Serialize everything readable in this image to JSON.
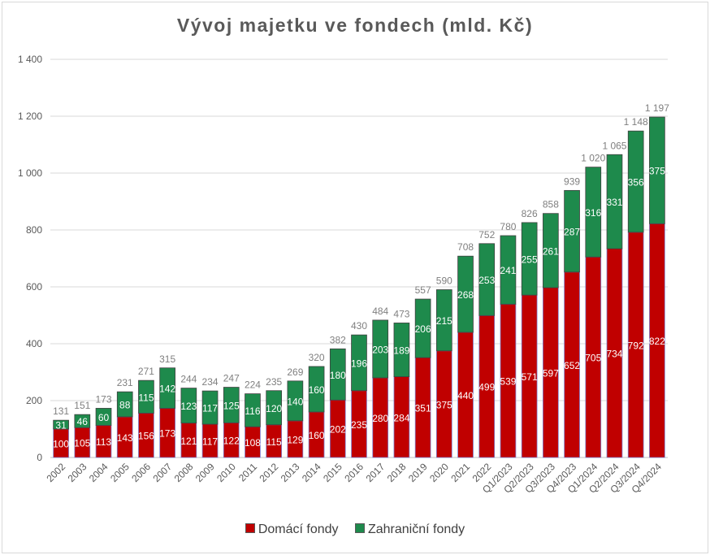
{
  "chart_data": {
    "type": "bar",
    "stacked": true,
    "title": "Vývoj majetku ve fondech (mld. Kč)",
    "categories": [
      "2002",
      "2003",
      "2004",
      "2005",
      "2006",
      "2007",
      "2008",
      "2009",
      "2010",
      "2011",
      "2012",
      "2013",
      "2014",
      "2015",
      "2016",
      "2017",
      "2018",
      "2019",
      "2020",
      "2021",
      "2022",
      "Q1/2023",
      "Q2/2023",
      "Q3/2023",
      "Q4/2023",
      "Q1/2024",
      "Q2/2024",
      "Q3/2024",
      "Q4/2024"
    ],
    "series": [
      {
        "name": "Domácí fondy",
        "color": "#c00000",
        "values": [
          100,
          105,
          113,
          143,
          156,
          173,
          121,
          117,
          122,
          108,
          115,
          129,
          160,
          202,
          235,
          280,
          284,
          351,
          375,
          440,
          499,
          539,
          571,
          597,
          652,
          705,
          734,
          792,
          822
        ]
      },
      {
        "name": "Zahraniční fondy",
        "color": "#1e8a4c",
        "values": [
          31,
          46,
          60,
          88,
          115,
          142,
          123,
          117,
          125,
          116,
          120,
          140,
          160,
          180,
          196,
          203,
          189,
          206,
          215,
          268,
          253,
          241,
          255,
          261,
          287,
          316,
          331,
          356,
          375
        ]
      }
    ],
    "totals": [
      "131",
      "151",
      "173",
      "231",
      "271",
      "315",
      "244",
      "234",
      "247",
      "224",
      "235",
      "269",
      "320",
      "382",
      "430",
      "484",
      "473",
      "557",
      "590",
      "708",
      "752",
      "780",
      "826",
      "858",
      "939",
      "1 020",
      "1 065",
      "1 148",
      "1 197"
    ],
    "y_ticks": [
      "0",
      "200",
      "400",
      "600",
      "800",
      "1 000",
      "1 200",
      "1 400"
    ],
    "ylim": [
      0,
      1400
    ],
    "grid": true,
    "legend_position": "bottom",
    "legend": [
      "Domácí fondy",
      "Zahraniční fondy"
    ]
  }
}
